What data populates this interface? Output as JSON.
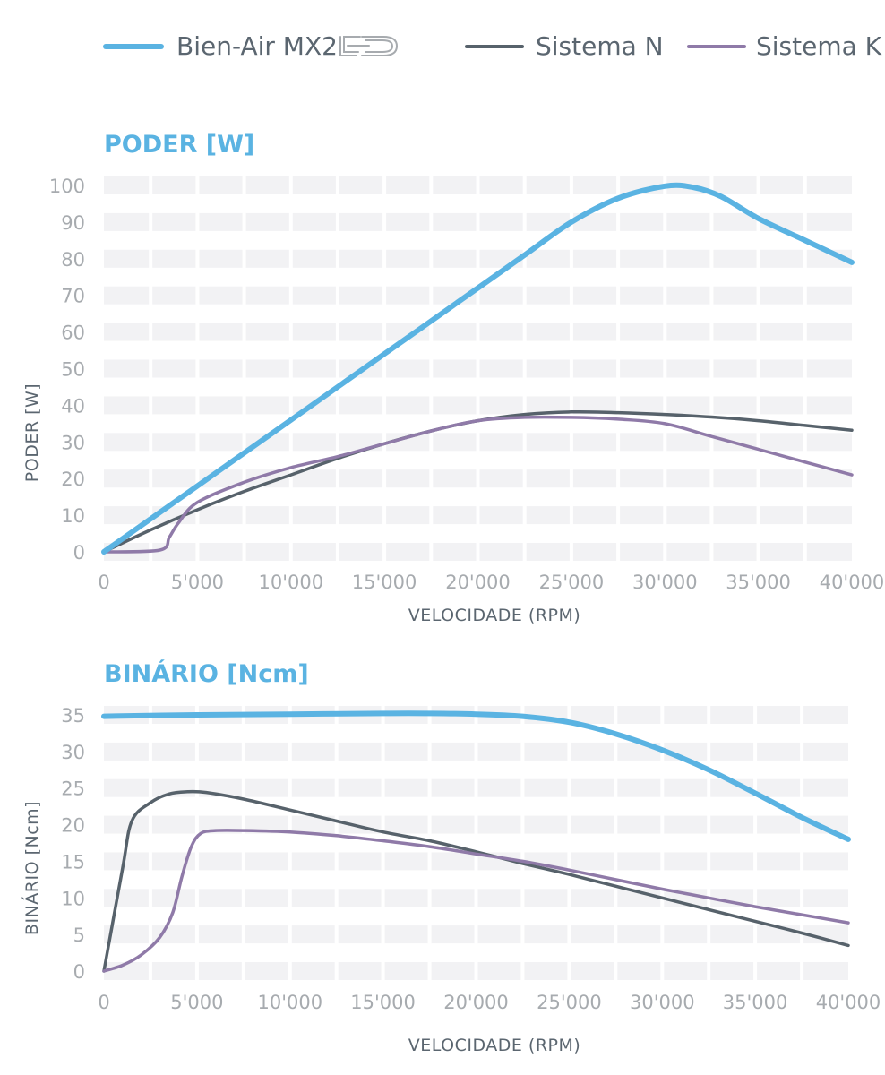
{
  "legend": {
    "items": [
      {
        "label": "Bien-Air MX2",
        "color": "#5ab3e2",
        "icon": "led-logo-icon"
      },
      {
        "label": "Sistema N",
        "color": "#57626b"
      },
      {
        "label": "Sistema K",
        "color": "#8f7aa8"
      }
    ]
  },
  "chart_data": [
    {
      "type": "line",
      "title": "PODER [W]",
      "xlabel": "VELOCIDADE (RPM)",
      "ylabel": "PODER [W]",
      "xlim": [
        0,
        40000
      ],
      "ylim": [
        0,
        100
      ],
      "x_ticks": [
        0,
        5000,
        10000,
        15000,
        20000,
        25000,
        30000,
        35000,
        40000
      ],
      "x_tick_labels": [
        "0",
        "5'000",
        "10'000",
        "15'000",
        "20'000",
        "25'000",
        "30'000",
        "35'000",
        "40'000"
      ],
      "y_ticks": [
        0,
        10,
        20,
        30,
        40,
        50,
        60,
        70,
        80,
        90,
        100
      ],
      "y_tick_labels": [
        "0",
        "10",
        "20",
        "30",
        "40",
        "50",
        "60",
        "70",
        "80",
        "90",
        "100"
      ],
      "grid": true,
      "legend": "top",
      "series": [
        {
          "name": "Bien-Air MX2",
          "color": "#5ab3e2",
          "width": 6,
          "x": [
            0,
            5000,
            10000,
            15000,
            20000,
            22500,
            25000,
            27500,
            30000,
            31500,
            33000,
            35000,
            37500,
            40000
          ],
          "y": [
            0,
            18,
            36,
            54,
            72,
            81,
            90,
            96.5,
            99.8,
            99.5,
            97,
            91,
            85,
            79
          ]
        },
        {
          "name": "Sistema N",
          "color": "#57626b",
          "width": 3.5,
          "x": [
            0,
            2500,
            5000,
            7500,
            10000,
            12500,
            15000,
            17500,
            20000,
            22500,
            25000,
            27500,
            30000,
            32500,
            35000,
            37500,
            40000
          ],
          "y": [
            0,
            6,
            11.5,
            16.5,
            21,
            25.5,
            29.5,
            33,
            35.8,
            37.5,
            38.2,
            38,
            37.5,
            36.8,
            35.8,
            34.5,
            33.2
          ]
        },
        {
          "name": "Sistema K",
          "color": "#8f7aa8",
          "width": 3.5,
          "x": [
            0,
            3000,
            3500,
            4000,
            5000,
            7500,
            10000,
            12500,
            15000,
            17500,
            20000,
            22500,
            25000,
            27500,
            30000,
            32500,
            35000,
            37500,
            40000
          ],
          "y": [
            0,
            0.5,
            4,
            8,
            13.5,
            19,
            23,
            26,
            29.5,
            33,
            35.8,
            36.7,
            36.7,
            36.2,
            35,
            31.5,
            28,
            24.5,
            21
          ]
        }
      ]
    },
    {
      "type": "line",
      "title": "BINÁRIO [Ncm]",
      "xlabel": "VELOCIDADE (RPM)",
      "ylabel": "BINÁRIO [Ncm]",
      "xlim": [
        0,
        40000
      ],
      "ylim": [
        0,
        35
      ],
      "x_ticks": [
        0,
        5000,
        10000,
        15000,
        20000,
        25000,
        30000,
        35000,
        40000
      ],
      "x_tick_labels": [
        "0",
        "5'000",
        "10'000",
        "15'000",
        "20'000",
        "25'000",
        "30'000",
        "35'000",
        "40'000"
      ],
      "y_ticks": [
        0,
        5,
        10,
        15,
        20,
        25,
        30,
        35
      ],
      "y_tick_labels": [
        "0",
        "5",
        "10",
        "15",
        "20",
        "25",
        "30",
        "35"
      ],
      "grid": true,
      "series": [
        {
          "name": "Bien-Air MX2",
          "color": "#5ab3e2",
          "width": 6,
          "x": [
            0,
            5000,
            10000,
            15000,
            17500,
            20000,
            22500,
            25000,
            27500,
            30000,
            32500,
            35000,
            37500,
            40000
          ],
          "y": [
            34.8,
            35,
            35.1,
            35.2,
            35.2,
            35.1,
            34.8,
            34,
            32.4,
            30.2,
            27.5,
            24.3,
            21,
            18
          ]
        },
        {
          "name": "Sistema N",
          "color": "#57626b",
          "width": 3.5,
          "x": [
            0,
            1000,
            1500,
            2500,
            3500,
            4500,
            5500,
            7500,
            10000,
            12500,
            15000,
            17500,
            20000,
            22500,
            25000,
            27500,
            30000,
            32500,
            35000,
            37500,
            40000
          ],
          "y": [
            0,
            14,
            20.5,
            23,
            24.2,
            24.5,
            24.4,
            23.5,
            22,
            20.5,
            19,
            17.8,
            16.3,
            14.7,
            13.2,
            11.6,
            10,
            8.4,
            6.8,
            5.2,
            3.5
          ]
        },
        {
          "name": "Sistema K",
          "color": "#8f7aa8",
          "width": 3.5,
          "x": [
            0,
            1000,
            2000,
            3000,
            3700,
            4200,
            4700,
            5200,
            6000,
            7500,
            10000,
            12500,
            15000,
            17500,
            20000,
            22500,
            25000,
            27500,
            30000,
            32500,
            35000,
            37500,
            40000
          ],
          "y": [
            0,
            0.8,
            2.2,
            4.6,
            8,
            13,
            17,
            18.8,
            19.2,
            19.2,
            19,
            18.5,
            17.8,
            17,
            16,
            15,
            13.8,
            12.5,
            11.2,
            10,
            8.8,
            7.7,
            6.6
          ]
        }
      ]
    }
  ]
}
